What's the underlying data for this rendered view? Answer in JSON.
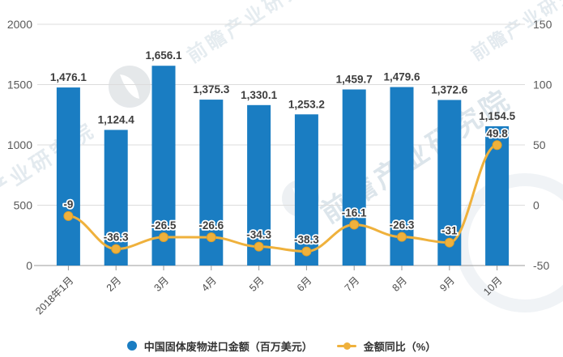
{
  "watermark": {
    "text": "前瞻产业研究院"
  },
  "legend": {
    "bar_label": "中国固体废物进口金额（百万美元）",
    "line_label": "金额同比（%）"
  },
  "chart_data": {
    "type": "combo-bar-line",
    "title": "",
    "categories": [
      "2018年1月",
      "2月",
      "3月",
      "4月",
      "5月",
      "6月",
      "7月",
      "8月",
      "9月",
      "10月"
    ],
    "series": [
      {
        "name": "中国固体废物进口金额（百万美元）",
        "type": "bar",
        "yaxis": "left",
        "color": "#1a7dc2",
        "values": [
          1476.1,
          1124.4,
          1656.1,
          1375.3,
          1330.1,
          1253.2,
          1459.7,
          1479.6,
          1372.6,
          1154.5
        ],
        "labels": [
          "1,476.1",
          "1,124.4",
          "1,656.1",
          "1,375.3",
          "1,330.1",
          "1,253.2",
          "1,459.7",
          "1,479.6",
          "1,372.6",
          "1,154.5"
        ]
      },
      {
        "name": "金额同比（%）",
        "type": "line",
        "yaxis": "right",
        "color": "#efb13c",
        "marker_edge_color": "#dfa028",
        "values": [
          -9,
          -36.3,
          -26.5,
          -26.6,
          -34.3,
          -38.3,
          -16.1,
          -26.3,
          -31,
          49.8
        ],
        "labels": [
          "-9",
          "-36.3",
          "-26.5",
          "-26.6",
          "-34.3",
          "-38.3",
          "-16.1",
          "-26.3",
          "-31",
          "49.8"
        ]
      }
    ],
    "left_axis": {
      "min": 0,
      "max": 2000,
      "ticks": [
        "2000",
        "1500",
        "1000",
        "500",
        "0"
      ]
    },
    "right_axis": {
      "min": -50,
      "max": 150,
      "ticks": [
        "150",
        "100",
        "50",
        "0",
        "-50"
      ]
    },
    "grid": true,
    "grid_color": "#dcdcdc",
    "axis_line_color": "#9b9b9b",
    "legend_position": "bottom"
  }
}
